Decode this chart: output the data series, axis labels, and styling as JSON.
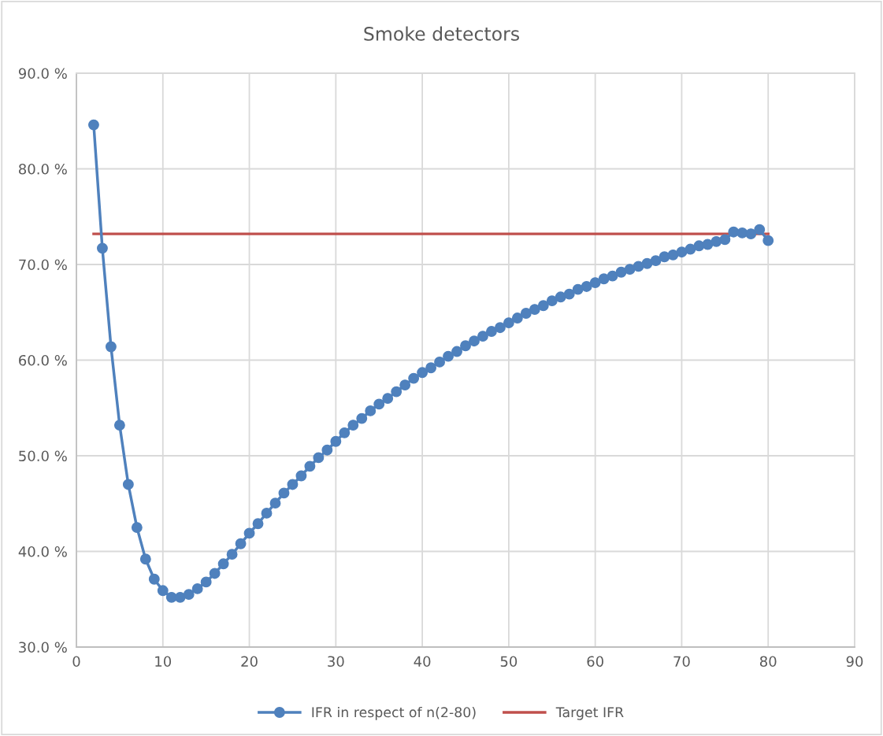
{
  "chart_data": {
    "type": "line",
    "title": "Smoke detectors",
    "xlim": [
      0,
      90
    ],
    "xticks": [
      0,
      10,
      20,
      30,
      40,
      50,
      60,
      70,
      80,
      90
    ],
    "ylim": [
      30,
      90
    ],
    "yticks": [
      {
        "value": 30,
        "label": "30.0 %"
      },
      {
        "value": 40,
        "label": "40.0 %"
      },
      {
        "value": 50,
        "label": "50.0 %"
      },
      {
        "value": 60,
        "label": "60.0 %"
      },
      {
        "value": 70,
        "label": "70.0 %"
      },
      {
        "value": 80,
        "label": "80.0 %"
      },
      {
        "value": 90,
        "label": "90.0 %"
      }
    ],
    "grid": true,
    "legend": "bottom",
    "series": [
      {
        "name": "IFR in respect of n(2-80)",
        "color": "#4f81bd",
        "marker": "circle",
        "x": [
          2,
          3,
          4,
          5,
          6,
          7,
          8,
          9,
          10,
          11,
          12,
          13,
          14,
          15,
          16,
          17,
          18,
          19,
          20,
          21,
          22,
          23,
          24,
          25,
          26,
          27,
          28,
          29,
          30,
          31,
          32,
          33,
          34,
          35,
          36,
          37,
          38,
          39,
          40,
          41,
          42,
          43,
          44,
          45,
          46,
          47,
          48,
          49,
          50,
          51,
          52,
          53,
          54,
          55,
          56,
          57,
          58,
          59,
          60,
          61,
          62,
          63,
          64,
          65,
          66,
          67,
          68,
          69,
          70,
          71,
          72,
          73,
          74,
          75,
          76,
          77,
          78,
          79,
          80
        ],
        "values": [
          84.6,
          71.7,
          61.4,
          53.2,
          47.0,
          42.5,
          39.2,
          37.1,
          35.9,
          35.2,
          35.2,
          35.5,
          36.1,
          36.8,
          37.7,
          38.7,
          39.7,
          40.8,
          41.9,
          42.9,
          44.0,
          45.05,
          46.1,
          47.0,
          47.9,
          48.9,
          49.8,
          50.6,
          51.5,
          52.4,
          53.2,
          53.9,
          54.7,
          55.4,
          56.0,
          56.7,
          57.4,
          58.1,
          58.7,
          59.2,
          59.8,
          60.4,
          60.9,
          61.5,
          62.0,
          62.5,
          63.0,
          63.4,
          63.9,
          64.4,
          64.9,
          65.3,
          65.7,
          66.2,
          66.6,
          66.9,
          67.4,
          67.7,
          68.1,
          68.5,
          68.8,
          69.2,
          69.5,
          69.8,
          70.1,
          70.4,
          70.8,
          71.0,
          71.3,
          71.6,
          71.95,
          72.1,
          72.4,
          72.6,
          73.4,
          73.3,
          73.2,
          73.65,
          72.5
        ]
      },
      {
        "name": "Target IFR",
        "color": "#c0504d",
        "marker": "none",
        "x": [
          2,
          80
        ],
        "values": [
          73.2,
          73.2
        ]
      }
    ]
  }
}
